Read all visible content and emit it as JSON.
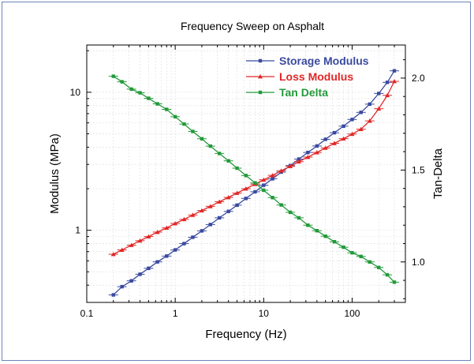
{
  "chart_data": {
    "type": "line",
    "title": "Frequency Sweep on Asphalt",
    "xlabel": "Frequency (Hz)",
    "ylabel": "Modulus (MPa)",
    "y2label": "Tan-Delta",
    "xscale": "log",
    "yscale": "log",
    "xlim": [
      0.1,
      400
    ],
    "ylim": [
      0.3,
      22
    ],
    "y2lim": [
      0.78,
      2.18
    ],
    "xticks": [
      {
        "value": 0.1,
        "label": "0.1"
      },
      {
        "value": 1,
        "label": "1"
      },
      {
        "value": 10,
        "label": "10"
      },
      {
        "value": 100,
        "label": "100"
      }
    ],
    "yticks": [
      {
        "value": 1,
        "label": "1"
      },
      {
        "value": 10,
        "label": "10"
      }
    ],
    "y2ticks": [
      {
        "value": 1.0,
        "label": "1.0"
      },
      {
        "value": 1.5,
        "label": "1.5"
      },
      {
        "value": 2.0,
        "label": "2.0"
      }
    ],
    "grid": true,
    "legend_position": "top-right",
    "x": [
      0.2,
      0.25,
      0.32,
      0.4,
      0.5,
      0.63,
      0.8,
      1.0,
      1.26,
      1.58,
      2.0,
      2.5,
      3.16,
      4.0,
      5.0,
      6.3,
      8.0,
      10,
      12.6,
      15.8,
      20,
      25,
      31.6,
      40,
      50,
      63,
      80,
      100,
      126,
      158,
      200,
      250,
      300
    ],
    "series": [
      {
        "name": "Storage Modulus",
        "axis": "left",
        "color": "#3a4aa0",
        "marker": "square",
        "values": [
          0.34,
          0.39,
          0.43,
          0.48,
          0.53,
          0.59,
          0.65,
          0.72,
          0.8,
          0.89,
          0.99,
          1.1,
          1.23,
          1.37,
          1.52,
          1.7,
          1.9,
          2.12,
          2.36,
          2.64,
          2.94,
          3.28,
          3.66,
          4.08,
          4.56,
          5.09,
          5.68,
          6.35,
          7.15,
          8.2,
          9.8,
          11.8,
          14.3
        ]
      },
      {
        "name": "Loss Modulus",
        "axis": "left",
        "color": "#e02828",
        "marker": "triangle",
        "values": [
          0.67,
          0.72,
          0.78,
          0.84,
          0.9,
          0.97,
          1.04,
          1.12,
          1.2,
          1.29,
          1.39,
          1.49,
          1.61,
          1.73,
          1.86,
          2.0,
          2.16,
          2.32,
          2.5,
          2.7,
          2.91,
          3.14,
          3.39,
          3.66,
          3.95,
          4.27,
          4.61,
          4.98,
          5.4,
          6.2,
          7.6,
          9.5,
          12.0
        ]
      },
      {
        "name": "Tan Delta",
        "axis": "right",
        "color": "#239a3b",
        "marker": "square",
        "values": [
          2.01,
          1.98,
          1.94,
          1.92,
          1.89,
          1.86,
          1.83,
          1.79,
          1.75,
          1.71,
          1.67,
          1.63,
          1.59,
          1.55,
          1.51,
          1.47,
          1.43,
          1.39,
          1.35,
          1.31,
          1.27,
          1.24,
          1.2,
          1.17,
          1.14,
          1.11,
          1.08,
          1.05,
          1.03,
          1.0,
          0.97,
          0.93,
          0.89
        ]
      }
    ]
  }
}
